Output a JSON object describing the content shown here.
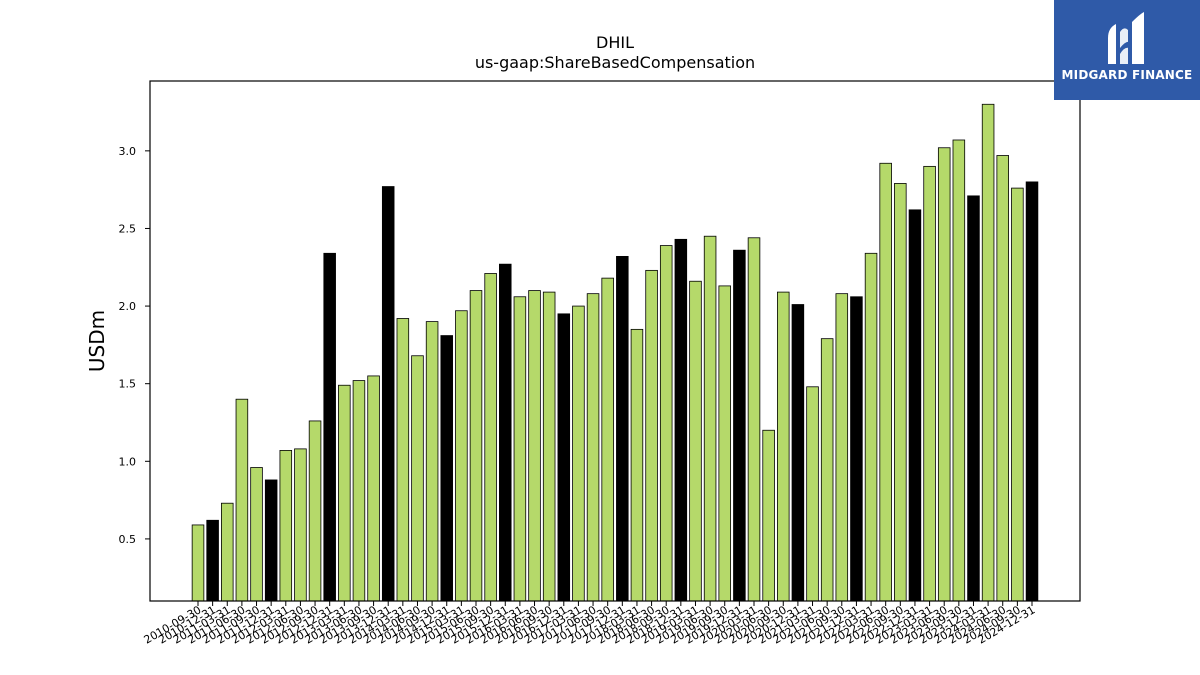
{
  "chart_data": {
    "type": "bar",
    "title": "DHIL",
    "subtitle": "us-gaap:ShareBasedCompensation",
    "xlabel": "",
    "ylabel": "USDm",
    "ylim": [
      0.1,
      3.45
    ],
    "yticks": [
      "0.5",
      "1.0",
      "1.5",
      "2.0",
      "2.5",
      "3.0"
    ],
    "grid": false,
    "colors": {
      "quarter": "#b5d96a",
      "year_end": "#000000",
      "edge": "#000000"
    },
    "categories": [
      "2010-09-30",
      "2010-12-31",
      "2011-03-31",
      "2011-06-30",
      "2011-09-30",
      "2011-12-31",
      "2012-03-31",
      "2012-06-30",
      "2012-09-30",
      "2012-12-31",
      "2013-03-31",
      "2013-06-30",
      "2013-09-30",
      "2013-12-31",
      "2014-03-31",
      "2014-06-30",
      "2014-09-30",
      "2014-12-31",
      "2015-03-31",
      "2015-06-30",
      "2015-09-30",
      "2015-12-31",
      "2016-03-31",
      "2016-06-30",
      "2016-09-30",
      "2016-12-31",
      "2017-03-31",
      "2017-06-30",
      "2017-09-30",
      "2017-12-31",
      "2018-03-31",
      "2018-06-30",
      "2018-09-30",
      "2018-12-31",
      "2019-03-31",
      "2019-06-30",
      "2019-09-30",
      "2019-12-31",
      "2020-03-31",
      "2020-06-30",
      "2020-09-30",
      "2020-12-31",
      "2021-03-31",
      "2021-06-30",
      "2021-09-30",
      "2021-12-31",
      "2022-03-31",
      "2022-06-30",
      "2022-09-30",
      "2022-12-31",
      "2023-03-31",
      "2023-06-30",
      "2023-09-30",
      "2023-12-31",
      "2024-03-31",
      "2024-06-30",
      "2024-09-30",
      "2024-12-31"
    ],
    "values": [
      0.59,
      0.62,
      0.73,
      1.4,
      0.96,
      0.88,
      1.07,
      1.08,
      1.26,
      2.34,
      1.49,
      1.52,
      1.55,
      2.77,
      1.92,
      1.68,
      1.9,
      1.81,
      1.97,
      2.1,
      2.21,
      2.27,
      2.06,
      2.1,
      2.09,
      1.95,
      2.0,
      2.08,
      2.18,
      2.32,
      1.85,
      2.23,
      2.39,
      2.43,
      2.16,
      2.45,
      2.13,
      2.36,
      2.44,
      1.2,
      2.09,
      2.01,
      1.48,
      1.79,
      2.08,
      2.06,
      2.34,
      2.92,
      2.79,
      2.62,
      2.9,
      3.02,
      3.07,
      2.71,
      3.3,
      2.97,
      2.76,
      2.8
    ],
    "year_end": [
      false,
      true,
      false,
      false,
      false,
      true,
      false,
      false,
      false,
      true,
      false,
      false,
      false,
      true,
      false,
      false,
      false,
      true,
      false,
      false,
      false,
      true,
      false,
      false,
      false,
      true,
      false,
      false,
      false,
      true,
      false,
      false,
      false,
      true,
      false,
      false,
      false,
      true,
      false,
      false,
      false,
      true,
      false,
      false,
      false,
      true,
      false,
      false,
      false,
      true,
      false,
      false,
      false,
      true,
      false,
      false,
      false,
      true
    ]
  },
  "logo": {
    "text": "MIDGARD FINANCE"
  }
}
